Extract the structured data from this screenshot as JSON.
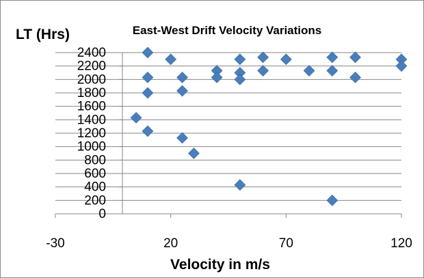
{
  "chart_data": {
    "type": "scatter",
    "title": "East-West Drift Velocity Variations",
    "xlabel": "Velocity in m/s",
    "ylabel": "LT (Hrs)",
    "xlim": [
      -30,
      120
    ],
    "ylim": [
      0,
      2400
    ],
    "x_ticks": [
      -30,
      20,
      70,
      120
    ],
    "y_ticks": [
      0,
      200,
      400,
      600,
      800,
      1000,
      1200,
      1400,
      1600,
      1800,
      2000,
      2200,
      2400
    ],
    "grid": "horizontal",
    "legend": "none",
    "marker": "diamond",
    "marker_color": "#4a7ebb",
    "points": [
      {
        "x": 10,
        "y": 2400
      },
      {
        "x": 20,
        "y": 2300
      },
      {
        "x": 50,
        "y": 2300
      },
      {
        "x": 60,
        "y": 2330
      },
      {
        "x": 70,
        "y": 2300
      },
      {
        "x": 90,
        "y": 2330
      },
      {
        "x": 100,
        "y": 2330
      },
      {
        "x": 120,
        "y": 2300
      },
      {
        "x": 120,
        "y": 2200
      },
      {
        "x": 40,
        "y": 2130
      },
      {
        "x": 50,
        "y": 2100
      },
      {
        "x": 60,
        "y": 2130
      },
      {
        "x": 80,
        "y": 2130
      },
      {
        "x": 90,
        "y": 2130
      },
      {
        "x": 10,
        "y": 2030
      },
      {
        "x": 25,
        "y": 2030
      },
      {
        "x": 40,
        "y": 2030
      },
      {
        "x": 50,
        "y": 2000
      },
      {
        "x": 100,
        "y": 2030
      },
      {
        "x": 10,
        "y": 1800
      },
      {
        "x": 25,
        "y": 1830
      },
      {
        "x": 5,
        "y": 1430
      },
      {
        "x": 10,
        "y": 1230
      },
      {
        "x": 25,
        "y": 1130
      },
      {
        "x": 30,
        "y": 900
      },
      {
        "x": 50,
        "y": 430
      },
      {
        "x": 90,
        "y": 200
      }
    ]
  }
}
